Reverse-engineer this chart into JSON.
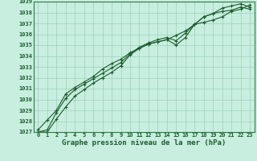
{
  "xlabel": "Graphe pression niveau de la mer (hPa)",
  "xlim": [
    -0.5,
    23.5
  ],
  "ylim": [
    1027,
    1039
  ],
  "xticks": [
    0,
    1,
    2,
    3,
    4,
    5,
    6,
    7,
    8,
    9,
    10,
    11,
    12,
    13,
    14,
    15,
    16,
    17,
    18,
    19,
    20,
    21,
    22,
    23
  ],
  "yticks": [
    1027,
    1028,
    1029,
    1030,
    1031,
    1032,
    1033,
    1034,
    1035,
    1036,
    1037,
    1038,
    1039
  ],
  "bg_color": "#c8eee0",
  "grid_color": "#9ecfba",
  "line_color": "#1a5c2a",
  "border_color": "#2d7a40",
  "series1": [
    1027.0,
    1027.2,
    1028.8,
    1030.1,
    1030.9,
    1031.4,
    1031.9,
    1032.4,
    1032.9,
    1033.4,
    1034.2,
    1034.8,
    1035.2,
    1035.5,
    1035.7,
    1035.4,
    1036.1,
    1036.9,
    1037.6,
    1037.9,
    1038.1,
    1038.2,
    1038.5,
    1038.3
  ],
  "series2": [
    1027.0,
    1027.0,
    1028.2,
    1029.3,
    1030.3,
    1030.9,
    1031.5,
    1032.0,
    1032.5,
    1033.1,
    1034.1,
    1034.7,
    1035.1,
    1035.3,
    1035.5,
    1035.0,
    1035.7,
    1036.9,
    1037.6,
    1037.9,
    1038.4,
    1038.6,
    1038.8,
    1038.5
  ],
  "series3": [
    1027.2,
    1028.1,
    1029.0,
    1030.5,
    1031.1,
    1031.6,
    1032.1,
    1032.8,
    1033.3,
    1033.7,
    1034.3,
    1034.7,
    1035.1,
    1035.3,
    1035.5,
    1035.9,
    1036.3,
    1036.9,
    1037.1,
    1037.3,
    1037.6,
    1038.1,
    1038.3,
    1038.7
  ],
  "marker": "+",
  "markersize": 3.5,
  "markeredgewidth": 0.8,
  "linewidth": 0.8,
  "tick_fontsize": 5.0,
  "label_fontsize": 6.5
}
